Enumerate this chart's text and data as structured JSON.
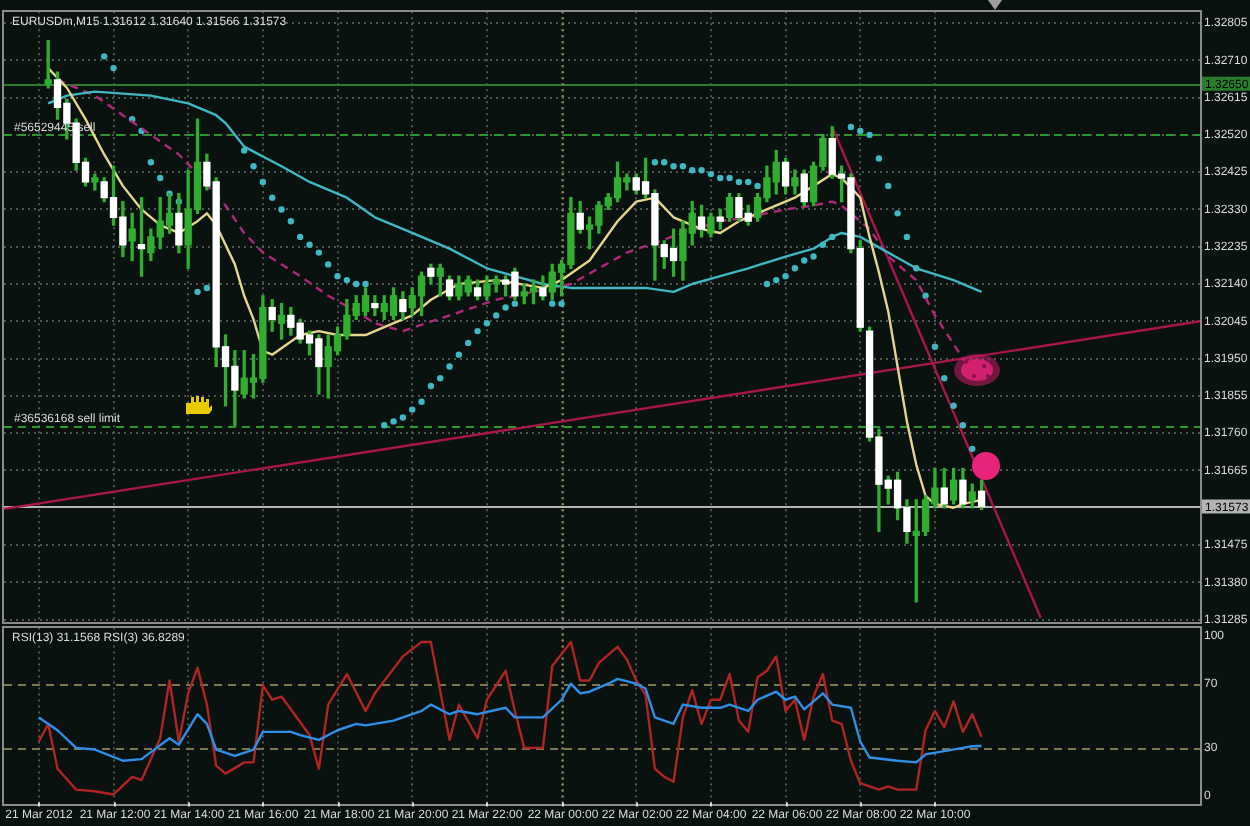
{
  "chart_data": [
    {
      "type": "candlestick",
      "title": "EURUSDm,M15 1.31612 1.31640 1.31566 1.31573",
      "x": [
        "2012-03-21T10:15",
        "2012-03-21T10:30",
        "2012-03-21T10:45",
        "2012-03-21T11:00",
        "2012-03-21T11:15",
        "2012-03-21T11:30",
        "2012-03-21T11:45",
        "2012-03-21T12:00",
        "2012-03-21T12:15",
        "2012-03-21T12:30",
        "2012-03-21T12:45",
        "2012-03-21T13:00",
        "2012-03-21T13:15",
        "2012-03-21T13:30",
        "2012-03-21T13:45",
        "2012-03-21T14:00",
        "2012-03-21T14:15",
        "2012-03-21T14:30",
        "2012-03-21T14:45",
        "2012-03-21T15:00",
        "2012-03-21T15:15",
        "2012-03-21T15:30",
        "2012-03-21T15:45",
        "2012-03-21T16:00",
        "2012-03-21T16:15",
        "2012-03-21T16:30",
        "2012-03-21T16:45",
        "2012-03-21T17:00",
        "2012-03-21T17:15",
        "2012-03-21T17:30",
        "2012-03-21T17:45",
        "2012-03-21T18:00",
        "2012-03-21T18:15",
        "2012-03-21T18:30",
        "2012-03-21T18:45",
        "2012-03-21T19:00",
        "2012-03-21T19:15",
        "2012-03-21T19:30",
        "2012-03-21T19:45",
        "2012-03-21T20:00",
        "2012-03-21T20:15",
        "2012-03-21T20:30",
        "2012-03-21T20:45",
        "2012-03-21T21:00",
        "2012-03-21T21:15",
        "2012-03-21T21:30",
        "2012-03-21T21:45",
        "2012-03-21T22:00",
        "2012-03-21T22:15",
        "2012-03-21T22:30",
        "2012-03-21T22:45",
        "2012-03-21T23:00",
        "2012-03-21T23:15",
        "2012-03-21T23:30",
        "2012-03-21T23:45",
        "2012-03-22T00:00",
        "2012-03-22T00:15",
        "2012-03-22T00:30",
        "2012-03-22T00:45",
        "2012-03-22T01:00",
        "2012-03-22T01:15",
        "2012-03-22T01:30",
        "2012-03-22T01:45",
        "2012-03-22T02:00",
        "2012-03-22T02:15",
        "2012-03-22T02:30",
        "2012-03-22T02:45",
        "2012-03-22T03:00",
        "2012-03-22T03:15",
        "2012-03-22T03:30",
        "2012-03-22T03:45",
        "2012-03-22T04:00",
        "2012-03-22T04:15",
        "2012-03-22T04:30",
        "2012-03-22T04:45",
        "2012-03-22T05:00",
        "2012-03-22T05:15",
        "2012-03-22T05:30",
        "2012-03-22T05:45",
        "2012-03-22T06:00",
        "2012-03-22T06:15",
        "2012-03-22T06:30",
        "2012-03-22T06:45",
        "2012-03-22T07:00",
        "2012-03-22T07:15",
        "2012-03-22T07:30",
        "2012-03-22T07:45",
        "2012-03-22T08:00",
        "2012-03-22T08:15",
        "2012-03-22T08:30",
        "2012-03-22T08:45",
        "2012-03-22T09:00",
        "2012-03-22T09:15",
        "2012-03-22T09:30",
        "2012-03-22T09:45",
        "2012-03-22T10:00",
        "2012-03-22T10:15",
        "2012-03-22T10:30",
        "2012-03-22T10:45",
        "2012-03-22T11:00",
        "2012-03-22T11:15"
      ],
      "ohlc": [
        [
          1.3265,
          1.3276,
          1.3264,
          1.3266
        ],
        [
          1.3266,
          1.3268,
          1.3256,
          1.3259
        ],
        [
          1.326,
          1.3261,
          1.3251,
          1.3255
        ],
        [
          1.3255,
          1.3256,
          1.3243,
          1.3245
        ],
        [
          1.3245,
          1.3246,
          1.3239,
          1.324
        ],
        [
          1.324,
          1.3242,
          1.3238,
          1.3241
        ],
        [
          1.324,
          1.3241,
          1.3235,
          1.3236
        ],
        [
          1.3236,
          1.3244,
          1.3229,
          1.3231
        ],
        [
          1.3231,
          1.3235,
          1.3221,
          1.3224
        ],
        [
          1.3225,
          1.3232,
          1.322,
          1.3228
        ],
        [
          1.3224,
          1.3236,
          1.3216,
          1.3223
        ],
        [
          1.3222,
          1.3228,
          1.322,
          1.3226
        ],
        [
          1.3226,
          1.3236,
          1.3223,
          1.323
        ],
        [
          1.3229,
          1.3237,
          1.3227,
          1.3232
        ],
        [
          1.3232,
          1.3237,
          1.3222,
          1.3224
        ],
        [
          1.3224,
          1.3243,
          1.3218,
          1.3233
        ],
        [
          1.3233,
          1.3256,
          1.3232,
          1.3245
        ],
        [
          1.3245,
          1.3247,
          1.3238,
          1.3239
        ],
        [
          1.324,
          1.3241,
          1.3193,
          1.3198
        ],
        [
          1.3198,
          1.3201,
          1.3183,
          1.3193
        ],
        [
          1.3193,
          1.3197,
          1.3178,
          1.3187
        ],
        [
          1.3186,
          1.3197,
          1.3185,
          1.319
        ],
        [
          1.3189,
          1.3196,
          1.3185,
          1.319
        ],
        [
          1.319,
          1.3211,
          1.3189,
          1.3208
        ],
        [
          1.3208,
          1.321,
          1.3202,
          1.3205
        ],
        [
          1.3204,
          1.3209,
          1.32,
          1.3206
        ],
        [
          1.3206,
          1.3208,
          1.3201,
          1.3203
        ],
        [
          1.3204,
          1.3205,
          1.3199,
          1.32
        ],
        [
          1.3201,
          1.3202,
          1.3196,
          1.3199
        ],
        [
          1.32,
          1.3201,
          1.3186,
          1.3193
        ],
        [
          1.3193,
          1.3201,
          1.3185,
          1.3198
        ],
        [
          1.3197,
          1.3203,
          1.3196,
          1.3201
        ],
        [
          1.3201,
          1.321,
          1.32,
          1.3206
        ],
        [
          1.3206,
          1.3211,
          1.3205,
          1.3209
        ],
        [
          1.3207,
          1.3213,
          1.3206,
          1.3211
        ],
        [
          1.3209,
          1.3211,
          1.3206,
          1.3208
        ],
        [
          1.3207,
          1.3211,
          1.3205,
          1.3209
        ],
        [
          1.3206,
          1.3213,
          1.3205,
          1.3211
        ],
        [
          1.321,
          1.3212,
          1.3205,
          1.3207
        ],
        [
          1.3208,
          1.3213,
          1.3206,
          1.3211
        ],
        [
          1.3211,
          1.3217,
          1.3206,
          1.3216
        ],
        [
          1.3218,
          1.3219,
          1.3214,
          1.3216
        ],
        [
          1.3216,
          1.3219,
          1.3211,
          1.3218
        ],
        [
          1.3215,
          1.3216,
          1.321,
          1.3211
        ],
        [
          1.3211,
          1.3216,
          1.321,
          1.3214
        ],
        [
          1.3212,
          1.3216,
          1.3211,
          1.3215
        ],
        [
          1.3213,
          1.3215,
          1.321,
          1.3211
        ],
        [
          1.3211,
          1.3216,
          1.321,
          1.3214
        ],
        [
          1.3214,
          1.3216,
          1.3212,
          1.3215
        ],
        [
          1.3215,
          1.3216,
          1.3211,
          1.3214
        ],
        [
          1.3217,
          1.3218,
          1.321,
          1.3211
        ],
        [
          1.3211,
          1.3214,
          1.3209,
          1.3212
        ],
        [
          1.3212,
          1.3215,
          1.3209,
          1.3213
        ],
        [
          1.3213,
          1.3216,
          1.321,
          1.3211
        ],
        [
          1.3212,
          1.3219,
          1.321,
          1.3217
        ],
        [
          1.3217,
          1.322,
          1.3211,
          1.3219
        ],
        [
          1.3219,
          1.3236,
          1.3218,
          1.3232
        ],
        [
          1.3232,
          1.3235,
          1.3227,
          1.3228
        ],
        [
          1.3228,
          1.3231,
          1.3223,
          1.3229
        ],
        [
          1.3229,
          1.3235,
          1.3227,
          1.3234
        ],
        [
          1.3234,
          1.3237,
          1.3233,
          1.3236
        ],
        [
          1.3236,
          1.3245,
          1.3235,
          1.3241
        ],
        [
          1.324,
          1.3242,
          1.3238,
          1.3241
        ],
        [
          1.3241,
          1.3242,
          1.3237,
          1.3238
        ],
        [
          1.324,
          1.3246,
          1.3236,
          1.3237
        ],
        [
          1.3237,
          1.3238,
          1.3215,
          1.3224
        ],
        [
          1.3224,
          1.3225,
          1.3218,
          1.3221
        ],
        [
          1.3223,
          1.3228,
          1.3216,
          1.322
        ],
        [
          1.322,
          1.323,
          1.3215,
          1.3228
        ],
        [
          1.3227,
          1.3235,
          1.3224,
          1.3232
        ],
        [
          1.3231,
          1.3234,
          1.3226,
          1.3228
        ],
        [
          1.3227,
          1.3232,
          1.3226,
          1.3231
        ],
        [
          1.3231,
          1.3233,
          1.3228,
          1.323
        ],
        [
          1.3231,
          1.3237,
          1.323,
          1.3236
        ],
        [
          1.3236,
          1.3237,
          1.323,
          1.3231
        ],
        [
          1.3232,
          1.3234,
          1.3229,
          1.323
        ],
        [
          1.3231,
          1.3237,
          1.323,
          1.3236
        ],
        [
          1.3236,
          1.3244,
          1.3235,
          1.3241
        ],
        [
          1.324,
          1.3248,
          1.3237,
          1.3245
        ],
        [
          1.3245,
          1.3246,
          1.3237,
          1.3239
        ],
        [
          1.3239,
          1.3243,
          1.3237,
          1.3241
        ],
        [
          1.3242,
          1.3243,
          1.3234,
          1.3235
        ],
        [
          1.3235,
          1.3245,
          1.3234,
          1.3244
        ],
        [
          1.3244,
          1.3252,
          1.3243,
          1.3251
        ],
        [
          1.3251,
          1.3254,
          1.3241,
          1.3242
        ],
        [
          1.3242,
          1.3244,
          1.3235,
          1.3241
        ],
        [
          1.3241,
          1.3242,
          1.3222,
          1.3223
        ],
        [
          1.3223,
          1.3225,
          1.3202,
          1.3203
        ],
        [
          1.3202,
          1.3203,
          1.3174,
          1.3175
        ],
        [
          1.3175,
          1.3177,
          1.3151,
          1.3163
        ],
        [
          1.3164,
          1.3165,
          1.3158,
          1.3162
        ],
        [
          1.3164,
          1.3166,
          1.3154,
          1.3157
        ],
        [
          1.3157,
          1.3159,
          1.3148,
          1.3151
        ],
        [
          1.315,
          1.3159,
          1.3133,
          1.3151
        ],
        [
          1.3151,
          1.316,
          1.315,
          1.3159
        ],
        [
          1.3158,
          1.3167,
          1.3157,
          1.3162
        ],
        [
          1.3162,
          1.3167,
          1.3157,
          1.3158
        ],
        [
          1.3159,
          1.3167,
          1.3158,
          1.3164
        ],
        [
          1.3164,
          1.3167,
          1.3157,
          1.3158
        ],
        [
          1.3159,
          1.3163,
          1.3157,
          1.3161
        ],
        [
          1.31612,
          1.3164,
          1.31566,
          1.31573
        ]
      ],
      "color": "#2fae2f",
      "colors": [
        "#2fae2f",
        "#ffffff",
        "#ffffff",
        "#ffffff",
        "#ffffff",
        "#2fae2f",
        "#ffffff",
        "#ffffff",
        "#ffffff",
        "#2fae2f",
        "#ffffff",
        "#2fae2f",
        "#2fae2f",
        "#2fae2f",
        "#ffffff",
        "#2fae2f",
        "#2fae2f",
        "#ffffff",
        "#ffffff",
        "#ffffff",
        "#ffffff",
        "#2fae2f",
        "#2fae2f",
        "#2fae2f",
        "#ffffff",
        "#2fae2f",
        "#ffffff",
        "#ffffff",
        "#ffffff",
        "#ffffff",
        "#2fae2f",
        "#2fae2f",
        "#2fae2f",
        "#2fae2f",
        "#2fae2f",
        "#ffffff",
        "#2fae2f",
        "#2fae2f",
        "#ffffff",
        "#2fae2f",
        "#2fae2f",
        "#ffffff",
        "#2fae2f",
        "#ffffff",
        "#2fae2f",
        "#2fae2f",
        "#ffffff",
        "#2fae2f",
        "#2fae2f",
        "#ffffff",
        "#ffffff",
        "#2fae2f",
        "#2fae2f",
        "#ffffff",
        "#2fae2f",
        "#2fae2f",
        "#2fae2f",
        "#ffffff",
        "#2fae2f",
        "#2fae2f",
        "#2fae2f",
        "#2fae2f",
        "#2fae2f",
        "#ffffff",
        "#ffffff",
        "#ffffff",
        "#ffffff",
        "#ffffff",
        "#2fae2f",
        "#2fae2f",
        "#ffffff",
        "#2fae2f",
        "#ffffff",
        "#2fae2f",
        "#ffffff",
        "#ffffff",
        "#2fae2f",
        "#2fae2f",
        "#2fae2f",
        "#ffffff",
        "#2fae2f",
        "#ffffff",
        "#2fae2f",
        "#2fae2f",
        "#ffffff",
        "#ffffff",
        "#ffffff",
        "#ffffff",
        "#ffffff",
        "#ffffff",
        "#ffffff",
        "#ffffff",
        "#ffffff",
        "#2fae2f",
        "#2fae2f",
        "#2fae2f",
        "#ffffff",
        "#2fae2f",
        "#ffffff",
        "#2fae2f",
        "#ffffff"
      ],
      "series": [
        {
          "type": "line",
          "color": "#e6d58c",
          "x": [
            "2012-03-21T10:15",
            "2012-03-21T10:45",
            "2012-03-21T11:15",
            "2012-03-21T11:45",
            "2012-03-21T12:15",
            "2012-03-21T12:45",
            "2012-03-21T13:15",
            "2012-03-21T13:45",
            "2012-03-21T14:15",
            "2012-03-21T14:30",
            "2012-03-21T14:45",
            "2012-03-21T15:00",
            "2012-03-21T15:15",
            "2012-03-21T15:30",
            "2012-03-21T15:45",
            "2012-03-21T16:00",
            "2012-03-21T16:15",
            "2012-03-21T17:00",
            "2012-03-21T17:30",
            "2012-03-21T18:00",
            "2012-03-21T18:45",
            "2012-03-21T19:15",
            "2012-03-21T20:00",
            "2012-03-21T20:30",
            "2012-03-21T21:15",
            "2012-03-21T22:15",
            "2012-03-21T23:30",
            "2012-03-22T00:00",
            "2012-03-22T00:45",
            "2012-03-22T01:30",
            "2012-03-22T02:00",
            "2012-03-22T02:30",
            "2012-03-22T03:00",
            "2012-03-22T03:45",
            "2012-03-22T04:15",
            "2012-03-22T04:45",
            "2012-03-22T05:30",
            "2012-03-22T06:15",
            "2012-03-22T06:45",
            "2012-03-22T07:15",
            "2012-03-22T07:30",
            "2012-03-22T08:00",
            "2012-03-22T08:15",
            "2012-03-22T08:30",
            "2012-03-22T08:45",
            "2012-03-22T09:00",
            "2012-03-22T09:15",
            "2012-03-22T09:30",
            "2012-03-22T09:45",
            "2012-03-22T10:00",
            "2012-03-22T10:30",
            "2012-03-22T10:45",
            "2012-03-22T11:15"
          ],
          "values": [
            1.3269,
            1.3264,
            1.3256,
            1.3247,
            1.3239,
            1.3233,
            1.3229,
            1.3227,
            1.323,
            1.3232,
            1.3229,
            1.3224,
            1.3219,
            1.3211,
            1.3205,
            1.3197,
            1.3196,
            1.3201,
            1.3202,
            1.3201,
            1.3201,
            1.3203,
            1.3206,
            1.321,
            1.3214,
            1.3215,
            1.3213,
            1.3215,
            1.322,
            1.323,
            1.3235,
            1.3236,
            1.3231,
            1.3228,
            1.3227,
            1.323,
            1.3233,
            1.3236,
            1.3239,
            1.3242,
            1.3241,
            1.3236,
            1.3226,
            1.3217,
            1.3207,
            1.3193,
            1.3179,
            1.3168,
            1.316,
            1.3158,
            1.3157,
            1.3158,
            1.3159
          ]
        },
        {
          "type": "line",
          "color": "#3fb8c4",
          "x": [
            "2012-03-21T10:15",
            "2012-03-21T10:45",
            "2012-03-21T11:30",
            "2012-03-21T13:00",
            "2012-03-21T14:00",
            "2012-03-21T14:45",
            "2012-03-21T15:00",
            "2012-03-21T15:30",
            "2012-03-21T16:30",
            "2012-03-21T17:15",
            "2012-03-21T18:15",
            "2012-03-21T19:00",
            "2012-03-21T20:00",
            "2012-03-21T21:00",
            "2012-03-21T22:00",
            "2012-03-21T22:45",
            "2012-03-21T23:30",
            "2012-03-22T00:15",
            "2012-03-22T01:15",
            "2012-03-22T02:15",
            "2012-03-22T03:00",
            "2012-03-22T03:30",
            "2012-03-22T04:15",
            "2012-03-22T05:00",
            "2012-03-22T06:00",
            "2012-03-22T06:45",
            "2012-03-22T07:15",
            "2012-03-22T07:30",
            "2012-03-22T08:00",
            "2012-03-22T08:45",
            "2012-03-22T09:30",
            "2012-03-22T10:30",
            "2012-03-22T11:15"
          ],
          "values": [
            1.326,
            1.3262,
            1.3263,
            1.3262,
            1.326,
            1.3257,
            1.3255,
            1.3249,
            1.3244,
            1.324,
            1.3236,
            1.3231,
            1.3227,
            1.3223,
            1.3218,
            1.3216,
            1.3214,
            1.3213,
            1.3213,
            1.3213,
            1.3212,
            1.3214,
            1.3216,
            1.3218,
            1.3221,
            1.3223,
            1.3226,
            1.3227,
            1.3226,
            1.3222,
            1.3218,
            1.3215,
            1.3212
          ]
        },
        {
          "type": "line",
          "color": "#b0287a",
          "line_style": "dashed",
          "x": [
            "2012-03-21T10:30",
            "2012-03-21T11:30",
            "2012-03-21T12:15",
            "2012-03-21T13:00",
            "2012-03-21T13:45",
            "2012-03-21T14:15",
            "2012-03-21T15:00",
            "2012-03-21T15:30",
            "2012-03-21T16:00",
            "2012-03-21T17:00",
            "2012-03-21T17:45",
            "2012-03-21T18:30",
            "2012-03-21T19:00",
            "2012-03-21T19:45",
            "2012-03-21T21:00",
            "2012-03-21T22:15",
            "2012-03-21T23:15",
            "2012-03-22T00:15",
            "2012-03-22T01:00",
            "2012-03-22T01:45",
            "2012-03-22T03:15",
            "2012-03-22T04:15",
            "2012-03-22T05:00",
            "2012-03-22T06:00",
            "2012-03-22T06:45",
            "2012-03-22T07:15",
            "2012-03-22T07:30",
            "2012-03-22T08:15",
            "2012-03-22T08:45",
            "2012-03-22T09:30",
            "2012-03-22T10:00",
            "2012-03-22T10:45",
            "2012-03-22T11:15"
          ],
          "values": [
            1.3266,
            1.3262,
            1.3257,
            1.3252,
            1.3247,
            1.3242,
            1.3234,
            1.3227,
            1.3222,
            1.3216,
            1.3211,
            1.3207,
            1.3204,
            1.3202,
            1.3206,
            1.321,
            1.3212,
            1.3214,
            1.3218,
            1.3222,
            1.3227,
            1.323,
            1.3231,
            1.3233,
            1.3234,
            1.3235,
            1.3234,
            1.3228,
            1.3221,
            1.3215,
            1.3206,
            1.3195,
            1.319
          ]
        },
        {
          "type": "scatter",
          "color": "#3fb8c4",
          "marker": "circle",
          "x": [
            "2012-03-21T11:45",
            "2012-03-21T12:00",
            "2012-03-21T12:30",
            "2012-03-21T12:45",
            "2012-03-21T13:00",
            "2012-03-21T13:15",
            "2012-03-21T13:30",
            "2012-03-21T13:45",
            "2012-03-21T14:15",
            "2012-03-21T14:30",
            "2012-03-21T15:30",
            "2012-03-21T15:45",
            "2012-03-21T16:00",
            "2012-03-21T16:15",
            "2012-03-21T16:30",
            "2012-03-21T16:45",
            "2012-03-21T17:00",
            "2012-03-21T17:15",
            "2012-03-21T17:30",
            "2012-03-21T17:45",
            "2012-03-21T18:00",
            "2012-03-21T18:15",
            "2012-03-21T18:30",
            "2012-03-21T18:45",
            "2012-03-21T19:15",
            "2012-03-21T19:30",
            "2012-03-21T19:45",
            "2012-03-21T20:00",
            "2012-03-21T20:15",
            "2012-03-21T20:30",
            "2012-03-21T20:45",
            "2012-03-21T21:00",
            "2012-03-21T21:15",
            "2012-03-21T21:30",
            "2012-03-21T21:45",
            "2012-03-21T22:00",
            "2012-03-21T22:15",
            "2012-03-21T22:30",
            "2012-03-21T22:45",
            "2012-03-21T23:45",
            "2012-03-22T00:00",
            "2012-03-22T02:30",
            "2012-03-22T02:45",
            "2012-03-22T03:00",
            "2012-03-22T03:15",
            "2012-03-22T03:30",
            "2012-03-22T03:45",
            "2012-03-22T04:00",
            "2012-03-22T04:15",
            "2012-03-22T04:30",
            "2012-03-22T04:45",
            "2012-03-22T05:00",
            "2012-03-22T05:15",
            "2012-03-22T05:30",
            "2012-03-22T05:45",
            "2012-03-22T06:00",
            "2012-03-22T06:15",
            "2012-03-22T06:30",
            "2012-03-22T06:45",
            "2012-03-22T07:00",
            "2012-03-22T07:15",
            "2012-03-22T07:45",
            "2012-03-22T08:00",
            "2012-03-22T08:15",
            "2012-03-22T08:30",
            "2012-03-22T08:45",
            "2012-03-22T09:00",
            "2012-03-22T09:15",
            "2012-03-22T09:30",
            "2012-03-22T09:45",
            "2012-03-22T10:00",
            "2012-03-22T10:15",
            "2012-03-22T10:30",
            "2012-03-22T10:45",
            "2012-03-22T11:00"
          ],
          "values": [
            1.3272,
            1.3269,
            1.3256,
            1.3253,
            1.3245,
            1.3241,
            1.3237,
            1.3235,
            1.3212,
            1.3213,
            1.3248,
            1.3244,
            1.324,
            1.3236,
            1.3233,
            1.323,
            1.3226,
            1.3224,
            1.3222,
            1.3219,
            1.3216,
            1.3215,
            1.3214,
            1.3214,
            1.3178,
            1.3179,
            1.318,
            1.3182,
            1.3184,
            1.3188,
            1.319,
            1.3193,
            1.3196,
            1.3199,
            1.3202,
            1.3204,
            1.3206,
            1.3208,
            1.3209,
            1.3209,
            1.3209,
            1.3245,
            1.3245,
            1.3244,
            1.3244,
            1.3243,
            1.3243,
            1.3242,
            1.3241,
            1.3241,
            1.324,
            1.324,
            1.3239,
            1.3214,
            1.3215,
            1.3216,
            1.3218,
            1.322,
            1.3221,
            1.3224,
            1.3226,
            1.3254,
            1.3253,
            1.3252,
            1.3246,
            1.3239,
            1.3232,
            1.3226,
            1.3218,
            1.3211,
            1.3198,
            1.319,
            1.3183,
            1.3178,
            1.3172
          ]
        },
        {
          "type": "line",
          "color": "#a8164a",
          "x": [
            "2012-03-21T09:04",
            "2012-03-22T17:06"
          ],
          "values": [
            1.31567,
            1.32045
          ]
        },
        {
          "type": "line",
          "color": "#a8164a",
          "x": [
            "2012-03-22T07:15",
            "2012-03-22T12:50"
          ],
          "values": [
            1.3254,
            1.3129
          ]
        }
      ],
      "xlim": [
        "2012-03-21T09:04",
        "2012-03-22T17:06"
      ],
      "xticks": [
        {
          "value": "2012-03-21T10:00",
          "label": null
        },
        {
          "value": "2012-03-21T12:00",
          "label": null
        },
        {
          "value": "2012-03-21T14:00",
          "label": null
        },
        {
          "value": "2012-03-21T16:00",
          "label": null
        },
        {
          "value": "2012-03-21T18:00",
          "label": null
        },
        {
          "value": "2012-03-21T20:00",
          "label": null
        },
        {
          "value": "2012-03-21T22:00",
          "label": null
        },
        {
          "value": "2012-03-22T00:00",
          "label": null
        },
        {
          "value": "2012-03-22T02:00",
          "label": null
        },
        {
          "value": "2012-03-22T04:00",
          "label": null
        },
        {
          "value": "2012-03-22T06:00",
          "label": null
        },
        {
          "value": "2012-03-22T08:00",
          "label": null
        },
        {
          "value": "2012-03-22T10:00",
          "label": null
        }
      ],
      "ylim": [
        1.31282,
        1.32835
      ],
      "yticks": [
        1.32805,
        {
          "value": 1.3271,
          "label": "1.32710"
        },
        1.32615,
        {
          "value": 1.3252,
          "label": "1.32520"
        },
        1.32425,
        {
          "value": 1.3233,
          "label": "1.32330"
        },
        1.32235,
        {
          "value": 1.3214,
          "label": "1.32140"
        },
        1.32045,
        {
          "value": 1.3195,
          "label": "1.31950"
        },
        1.31855,
        {
          "value": 1.3176,
          "label": "1.31760"
        },
        1.31665,
        1.31475,
        {
          "value": 1.3138,
          "label": "1.31380"
        },
        1.31285
      ],
      "ref_lines": [
        {
          "axis": "y",
          "value": 1.3265,
          "label": "1.32650",
          "color": "#2a7d2a",
          "line_style": "solid"
        },
        {
          "axis": "y",
          "value": 1.3252,
          "label": "#56529445 sell",
          "color": "#2a9a2a",
          "line_style": "dashed"
        },
        {
          "axis": "y",
          "value": 1.3178,
          "label": "#36536168 sell limit",
          "color": "#2a9a2a",
          "line_style": "dashed"
        },
        {
          "axis": "y",
          "value": 1.31573,
          "label": "1.31573",
          "color": "#b4b4b4",
          "line_style": "solid"
        },
        {
          "axis": "x",
          "value": "2012-03-22T00:00",
          "color": "#8c8250",
          "line_style": "dotted"
        }
      ],
      "grid": true,
      "tick_labels": "y",
      "marker": "none"
    },
    {
      "type": "line",
      "title": "RSI(13) 31.1568 RSI(3) 36.8289",
      "series": [
        {
          "color": "#2f8fe8",
          "x": [
            "2012-03-21T10:00",
            "2012-03-21T10:30",
            "2012-03-21T11:00",
            "2012-03-21T11:30",
            "2012-03-21T12:15",
            "2012-03-21T12:45",
            "2012-03-21T13:30",
            "2012-03-21T13:45",
            "2012-03-21T14:15",
            "2012-03-21T14:30",
            "2012-03-21T14:45",
            "2012-03-21T15:15",
            "2012-03-21T15:45",
            "2012-03-21T16:00",
            "2012-03-21T16:45",
            "2012-03-21T17:00",
            "2012-03-21T17:30",
            "2012-03-21T18:00",
            "2012-03-21T18:30",
            "2012-03-21T18:45",
            "2012-03-21T19:30",
            "2012-03-21T20:15",
            "2012-03-21T20:30",
            "2012-03-21T21:00",
            "2012-03-21T21:15",
            "2012-03-21T21:45",
            "2012-03-21T22:30",
            "2012-03-21T22:45",
            "2012-03-21T23:30",
            "2012-03-22T00:00",
            "2012-03-22T00:15",
            "2012-03-22T00:30",
            "2012-03-22T00:45",
            "2012-03-22T01:15",
            "2012-03-22T01:30",
            "2012-03-22T02:00",
            "2012-03-22T02:15",
            "2012-03-22T02:30",
            "2012-03-22T02:45",
            "2012-03-22T03:00",
            "2012-03-22T03:15",
            "2012-03-22T03:45",
            "2012-03-22T04:15",
            "2012-03-22T04:30",
            "2012-03-22T05:00",
            "2012-03-22T05:15",
            "2012-03-22T05:45",
            "2012-03-22T06:00",
            "2012-03-22T06:15",
            "2012-03-22T06:30",
            "2012-03-22T07:00",
            "2012-03-22T07:15",
            "2012-03-22T07:45",
            "2012-03-22T08:00",
            "2012-03-22T08:15",
            "2012-03-22T09:00",
            "2012-03-22T09:30",
            "2012-03-22T09:45",
            "2012-03-22T10:15",
            "2012-03-22T10:45",
            "2012-03-22T11:00",
            "2012-03-22T11:15"
          ],
          "values": [
            49,
            41,
            30,
            29,
            22,
            23,
            36,
            32,
            51,
            45,
            29,
            25,
            29,
            40,
            40,
            38,
            35,
            41,
            45,
            44,
            47,
            53,
            57,
            51,
            53,
            51,
            55,
            49,
            49,
            60,
            70,
            64,
            65,
            70,
            73,
            70,
            67,
            49,
            47,
            45,
            57,
            55,
            55,
            57,
            53,
            60,
            65,
            60,
            62,
            54,
            64,
            57,
            55,
            34,
            24,
            22,
            21,
            26,
            28,
            30,
            31,
            31.1568
          ]
        },
        {
          "color": "#b02424",
          "x": [
            "2012-03-21T10:00",
            "2012-03-21T10:15",
            "2012-03-21T10:30",
            "2012-03-21T11:00",
            "2012-03-21T11:30",
            "2012-03-21T12:00",
            "2012-03-21T12:30",
            "2012-03-21T12:45",
            "2012-03-21T13:15",
            "2012-03-21T13:30",
            "2012-03-21T13:45",
            "2012-03-21T14:00",
            "2012-03-21T14:15",
            "2012-03-21T14:30",
            "2012-03-21T14:45",
            "2012-03-21T15:00",
            "2012-03-21T15:30",
            "2012-03-21T15:45",
            "2012-03-21T16:00",
            "2012-03-21T16:15",
            "2012-03-21T16:30",
            "2012-03-21T17:15",
            "2012-03-21T17:30",
            "2012-03-21T17:45",
            "2012-03-21T18:15",
            "2012-03-21T18:45",
            "2012-03-21T19:00",
            "2012-03-21T19:45",
            "2012-03-21T20:15",
            "2012-03-21T20:30",
            "2012-03-21T21:00",
            "2012-03-21T21:15",
            "2012-03-21T21:45",
            "2012-03-21T22:00",
            "2012-03-21T22:30",
            "2012-03-21T22:45",
            "2012-03-21T23:00",
            "2012-03-21T23:30",
            "2012-03-21T23:45",
            "2012-03-22T00:15",
            "2012-03-22T00:30",
            "2012-03-22T00:45",
            "2012-03-22T01:00",
            "2012-03-22T01:30",
            "2012-03-22T01:45",
            "2012-03-22T02:00",
            "2012-03-22T02:15",
            "2012-03-22T02:30",
            "2012-03-22T02:45",
            "2012-03-22T03:00",
            "2012-03-22T03:15",
            "2012-03-22T03:30",
            "2012-03-22T03:45",
            "2012-03-22T04:00",
            "2012-03-22T04:15",
            "2012-03-22T04:30",
            "2012-03-22T04:45",
            "2012-03-22T05:00",
            "2012-03-22T05:15",
            "2012-03-22T05:30",
            "2012-03-22T05:45",
            "2012-03-22T06:00",
            "2012-03-22T06:15",
            "2012-03-22T06:30",
            "2012-03-22T06:45",
            "2012-03-22T07:00",
            "2012-03-22T07:15",
            "2012-03-22T07:30",
            "2012-03-22T07:45",
            "2012-03-22T08:00",
            "2012-03-22T08:30",
            "2012-03-22T08:45",
            "2012-03-22T09:00",
            "2012-03-22T09:30",
            "2012-03-22T09:45",
            "2012-03-22T10:00",
            "2012-03-22T10:15",
            "2012-03-22T10:30",
            "2012-03-22T10:45",
            "2012-03-22T11:00",
            "2012-03-22T11:15"
          ],
          "values": [
            34,
            45,
            17,
            4,
            3,
            1,
            12,
            10,
            36,
            72,
            34,
            64,
            80,
            57,
            19,
            14,
            21,
            21,
            69,
            60,
            62,
            38,
            17,
            57,
            76,
            53,
            64,
            87,
            96,
            96,
            35,
            57,
            36,
            60,
            78,
            53,
            30,
            30,
            81,
            96,
            72,
            72,
            83,
            93,
            85,
            72,
            63,
            17,
            12,
            9,
            49,
            66,
            45,
            60,
            60,
            76,
            47,
            40,
            74,
            78,
            87,
            53,
            60,
            35,
            62,
            76,
            47,
            45,
            22,
            8,
            4,
            6,
            4,
            4,
            41,
            53,
            43,
            59,
            40,
            51,
            36.8289
          ]
        }
      ],
      "xlim": [
        "2012-03-21T09:04",
        "2012-03-22T17:06"
      ],
      "xticks": [
        {
          "value": "2012-03-21T10:00",
          "label": "21 Mar 2012"
        },
        {
          "value": "2012-03-21T12:00",
          "label": "21 Mar 12:00"
        },
        {
          "value": "2012-03-21T14:00",
          "label": "21 Mar 14:00"
        },
        {
          "value": "2012-03-21T16:00",
          "label": "21 Mar 16:00"
        },
        {
          "value": "2012-03-21T18:00",
          "label": "21 Mar 18:00"
        },
        {
          "value": "2012-03-21T20:00",
          "label": "21 Mar 20:00"
        },
        {
          "value": "2012-03-21T22:00",
          "label": "21 Mar 22:00"
        },
        {
          "value": "2012-03-22T00:00",
          "label": "22 Mar 00:00"
        },
        {
          "value": "2012-03-22T02:00",
          "label": "22 Mar 02:00"
        },
        {
          "value": "2012-03-22T04:00",
          "label": "22 Mar 04:00"
        },
        {
          "value": "2012-03-22T06:00",
          "label": "22 Mar 06:00"
        },
        {
          "value": "2012-03-22T08:00",
          "label": "22 Mar 08:00"
        },
        {
          "value": "2012-03-22T10:00",
          "label": "22 Mar 10:00"
        }
      ],
      "ylim": [
        -4,
        105
      ],
      "yticks": [
        0,
        30,
        70,
        100
      ],
      "ref_lines": [
        {
          "axis": "x",
          "value": "2012-03-22T00:00",
          "color": "#8c8250",
          "line_style": "dotted"
        },
        {
          "axis": "y",
          "value": 70,
          "color": "#7d7450",
          "line_style": "dashed"
        },
        {
          "axis": "y",
          "value": 30,
          "color": "#7d7450",
          "line_style": "dashed"
        }
      ],
      "grid": "x",
      "marker": "none"
    }
  ]
}
